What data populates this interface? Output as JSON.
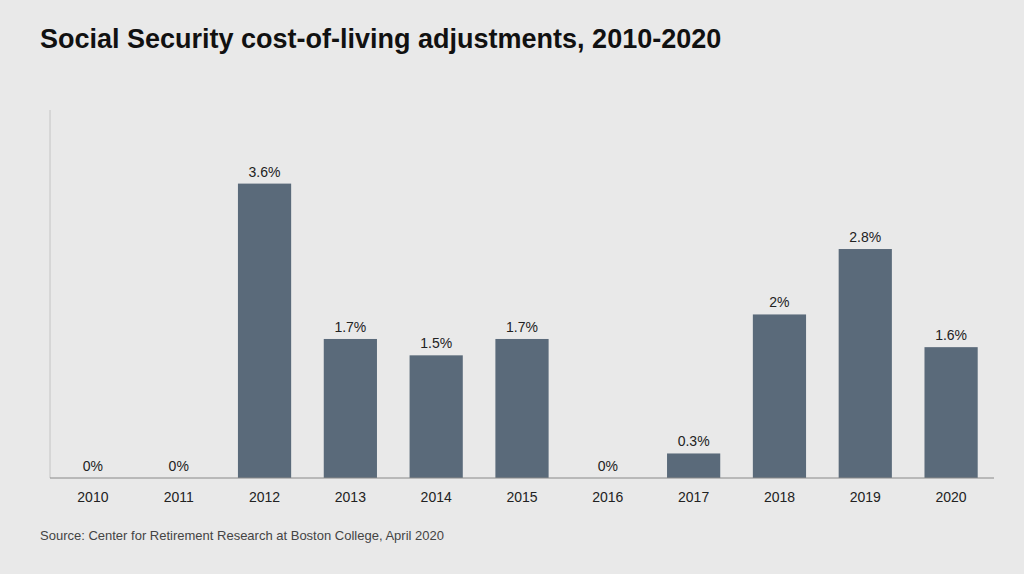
{
  "chart_data": {
    "type": "bar",
    "title": "Social Security cost-of-living adjustments, 2010-2020",
    "categories": [
      "2010",
      "2011",
      "2012",
      "2013",
      "2014",
      "2015",
      "2016",
      "2017",
      "2018",
      "2019",
      "2020"
    ],
    "values": [
      0.0,
      0.0,
      3.6,
      1.7,
      1.5,
      1.7,
      0.0,
      0.3,
      2.0,
      2.8,
      1.6
    ],
    "value_labels": [
      "0%",
      "0%",
      "3.6%",
      "1.7%",
      "1.5%",
      "1.7%",
      "0%",
      "0.3%",
      "2%",
      "2.8%",
      "1.6%"
    ],
    "data_labels": true,
    "color": "#5a6a7a",
    "ylim": [
      0,
      4.5
    ],
    "tick_labels": "x",
    "grid": false,
    "annotations": [
      "Source: Center for Retirement Research at Boston College, April 2020"
    ]
  }
}
